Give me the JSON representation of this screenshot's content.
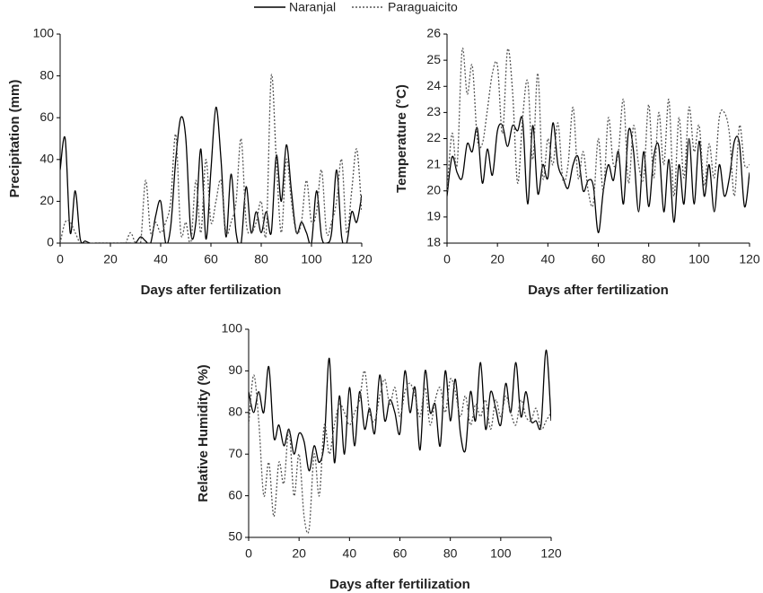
{
  "chart_data": [
    {
      "type": "line",
      "ylabel": "Precipitation (mm)",
      "xlabel": "Days after fertilization",
      "x": [
        0,
        2,
        4,
        6,
        8,
        10,
        12,
        14,
        16,
        18,
        20,
        22,
        24,
        26,
        28,
        30,
        32,
        34,
        36,
        38,
        40,
        42,
        44,
        46,
        48,
        50,
        52,
        54,
        56,
        58,
        60,
        62,
        64,
        66,
        68,
        70,
        72,
        74,
        76,
        78,
        80,
        82,
        84,
        86,
        88,
        90,
        92,
        94,
        96,
        98,
        100,
        102,
        104,
        106,
        108,
        110,
        112,
        114,
        116,
        118,
        120
      ],
      "series": [
        {
          "name": "Naranjal",
          "color": "#000000",
          "dash": "none",
          "values": [
            35,
            50,
            5,
            25,
            2,
            1,
            0,
            0,
            0,
            0,
            0,
            0,
            0,
            0,
            0,
            0,
            3,
            1,
            0,
            13,
            20,
            0,
            8,
            40,
            60,
            50,
            5,
            10,
            45,
            2,
            35,
            65,
            40,
            3,
            33,
            5,
            0,
            27,
            5,
            15,
            5,
            15,
            5,
            42,
            20,
            47,
            25,
            5,
            10,
            5,
            0,
            25,
            3,
            0,
            5,
            35,
            3,
            0,
            15,
            10,
            23
          ]
        },
        {
          "name": "Paraguaicito",
          "color": "#555555",
          "dash": "2,2",
          "values": [
            0,
            10,
            10,
            5,
            0,
            0,
            0,
            0,
            0,
            0,
            0,
            0,
            0,
            0,
            5,
            0,
            0,
            30,
            5,
            10,
            5,
            10,
            20,
            52,
            5,
            10,
            0,
            30,
            5,
            40,
            10,
            20,
            30,
            5,
            10,
            20,
            50,
            10,
            5,
            10,
            20,
            5,
            80,
            40,
            5,
            40,
            20,
            5,
            10,
            30,
            10,
            15,
            35,
            5,
            10,
            20,
            40,
            5,
            25,
            45,
            15
          ]
        }
      ],
      "xlim": [
        0,
        120
      ],
      "xticks": [
        0,
        20,
        40,
        60,
        80,
        100,
        120
      ],
      "ylim": [
        0,
        100
      ],
      "yticks": [
        0,
        20,
        40,
        60,
        80,
        100
      ]
    },
    {
      "type": "line",
      "ylabel": "Temperature (°C)",
      "xlabel": "Days after fertilization",
      "x": [
        0,
        2,
        4,
        6,
        8,
        10,
        12,
        14,
        16,
        18,
        20,
        22,
        24,
        26,
        28,
        30,
        32,
        34,
        36,
        38,
        40,
        42,
        44,
        46,
        48,
        50,
        52,
        54,
        56,
        58,
        60,
        62,
        64,
        66,
        68,
        70,
        72,
        74,
        76,
        78,
        80,
        82,
        84,
        86,
        88,
        90,
        92,
        94,
        96,
        98,
        100,
        102,
        104,
        106,
        108,
        110,
        112,
        114,
        116,
        118,
        120
      ],
      "series": [
        {
          "color": "#000000",
          "dash": "none",
          "values": [
            19.8,
            21.3,
            20.7,
            20.5,
            21.8,
            21.5,
            22.4,
            20.3,
            21.6,
            20.6,
            22.3,
            22.5,
            21.7,
            22.5,
            22.3,
            22.7,
            19.5,
            22.5,
            19.9,
            21.0,
            20.5,
            22.6,
            21.0,
            20.5,
            20.1,
            21.0,
            21.3,
            20.0,
            20.4,
            20.2,
            18.4,
            20.0,
            21.0,
            20.4,
            21.5,
            19.5,
            22.3,
            21.5,
            19.2,
            21.5,
            19.4,
            21.3,
            21.7,
            19.2,
            21.2,
            18.8,
            21.0,
            19.5,
            22.0,
            19.5,
            21.9,
            19.8,
            21.0,
            19.2,
            21.0,
            19.8,
            20.5,
            21.9,
            21.8,
            19.4,
            20.7
          ]
        },
        {
          "color": "#555555",
          "dash": "2,2",
          "values": [
            20.0,
            22.2,
            21.0,
            25.4,
            23.7,
            24.8,
            22.0,
            21.8,
            23.1,
            24.5,
            24.8,
            22.2,
            25.4,
            23.8,
            20.3,
            22.8,
            24.2,
            21.2,
            24.5,
            20.5,
            22.0,
            21.0,
            22.6,
            20.4,
            21.0,
            23.2,
            20.5,
            21.5,
            20.0,
            19.5,
            22.0,
            20.0,
            22.8,
            21.0,
            21.5,
            23.5,
            20.3,
            22.5,
            21.0,
            20.5,
            23.3,
            20.5,
            23.0,
            21.0,
            23.5,
            19.8,
            22.8,
            20.5,
            23.2,
            21.5,
            22.5,
            20.2,
            21.8,
            20.5,
            22.8,
            23.0,
            22.2,
            19.8,
            22.5,
            21.0,
            21.0
          ]
        }
      ],
      "xlim": [
        0,
        120
      ],
      "xticks": [
        0,
        20,
        40,
        60,
        80,
        100,
        120
      ],
      "ylim": [
        18,
        26
      ],
      "yticks": [
        18,
        19,
        20,
        21,
        22,
        23,
        24,
        25,
        26
      ]
    },
    {
      "type": "line",
      "ylabel": "Relative Humidity (%)",
      "xlabel": "Days after fertilization",
      "x": [
        0,
        2,
        4,
        6,
        8,
        10,
        12,
        14,
        16,
        18,
        20,
        22,
        24,
        26,
        28,
        30,
        32,
        34,
        36,
        38,
        40,
        42,
        44,
        46,
        48,
        50,
        52,
        54,
        56,
        58,
        60,
        62,
        64,
        66,
        68,
        70,
        72,
        74,
        76,
        78,
        80,
        82,
        84,
        86,
        88,
        90,
        92,
        94,
        96,
        98,
        100,
        102,
        104,
        106,
        108,
        110,
        112,
        114,
        116,
        118,
        120
      ],
      "series": [
        {
          "color": "#000000",
          "dash": "none",
          "values": [
            85,
            80,
            85,
            80,
            91,
            74,
            77,
            72,
            76,
            70,
            75,
            73,
            66,
            72,
            68,
            73,
            93,
            68,
            84,
            70,
            86,
            72,
            85,
            76,
            81,
            75,
            89,
            78,
            83,
            80,
            75,
            90,
            80,
            86,
            71,
            90,
            80,
            82,
            72,
            90,
            78,
            88,
            75,
            71,
            85,
            78,
            92,
            76,
            85,
            81,
            77,
            87,
            80,
            92,
            79,
            85,
            78,
            78,
            77,
            95,
            78
          ]
        },
        {
          "color": "#555555",
          "dash": "2,2",
          "values": [
            77,
            89,
            78,
            60,
            68,
            55,
            68,
            63,
            76,
            60,
            70,
            55,
            52,
            70,
            60,
            77,
            70,
            77,
            82,
            80,
            77,
            80,
            83,
            90,
            80,
            78,
            84,
            88,
            82,
            86,
            79,
            85,
            87,
            84,
            79,
            86,
            77,
            83,
            86,
            80,
            88,
            85,
            79,
            84,
            77,
            82,
            79,
            83,
            76,
            83,
            79,
            84,
            80,
            77,
            83,
            79,
            78,
            81,
            76,
            78,
            80
          ]
        }
      ],
      "xlim": [
        0,
        120
      ],
      "xticks": [
        0,
        20,
        40,
        60,
        80,
        100,
        120
      ],
      "ylim": [
        50,
        100
      ],
      "yticks": [
        50,
        60,
        70,
        80,
        90,
        100
      ]
    }
  ]
}
